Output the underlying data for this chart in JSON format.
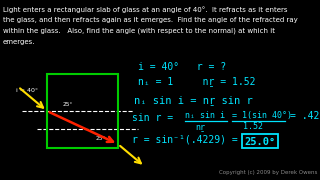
{
  "bg_color": "#000000",
  "text_color": "#ffffff",
  "cyan_color": "#00e5ff",
  "title_lines": [
    "Light enters a rectangular slab of glass at an angle of 40°.  It refracts as it enters",
    "the glass, and then refracts again as it emerges.  Find the angle of the refracted ray",
    "within the glass.   Also, find the angle (with respect to the normal) at which it",
    "emerges."
  ],
  "copyright": "Copyright (c) 2009 by Derek Owens",
  "rect_color": "#00cc00",
  "yellow": "#ffdd00",
  "red": "#ff2200",
  "white": "#ffffff"
}
